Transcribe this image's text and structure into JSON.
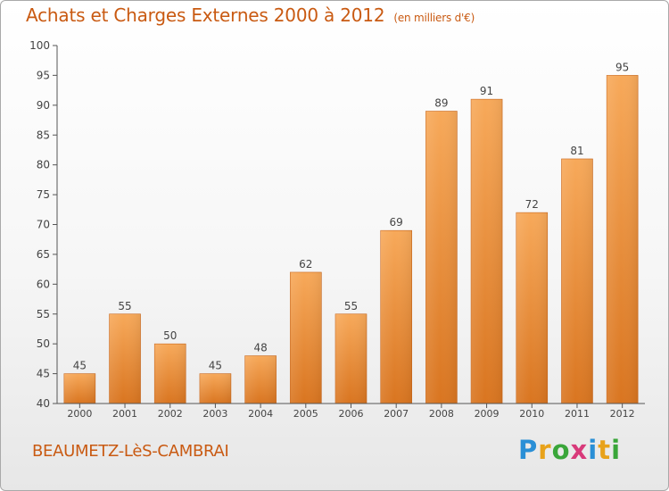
{
  "header": {
    "title": "Achats et Charges Externes 2000 à 2012",
    "subtitle": "(en milliers d'€)"
  },
  "footer": {
    "commune": "BEAUMETZ-LèS-CAMBRAI",
    "logo_letters": [
      "P",
      "r",
      "o",
      "x",
      "i",
      "t",
      "i"
    ]
  },
  "colors": {
    "title": "#c95a12",
    "bar_top": "#f7a95a",
    "bar_bottom": "#d97520",
    "axis": "#666666",
    "grid": "#cccccc"
  },
  "chart_data": {
    "type": "bar",
    "title": "Achats et Charges Externes 2000 à 2012",
    "subtitle": "(en milliers d'€)",
    "categories": [
      "2000",
      "2001",
      "2002",
      "2003",
      "2004",
      "2005",
      "2006",
      "2007",
      "2008",
      "2009",
      "2010",
      "2011",
      "2012"
    ],
    "values": [
      45,
      55,
      50,
      45,
      48,
      62,
      55,
      69,
      89,
      91,
      72,
      81,
      95
    ],
    "xlabel": "",
    "ylabel": "",
    "ylim": [
      40,
      100
    ],
    "yticks": [
      40,
      45,
      50,
      55,
      60,
      65,
      70,
      75,
      80,
      85,
      90,
      95,
      100
    ],
    "grid": false,
    "data_labels": true
  }
}
